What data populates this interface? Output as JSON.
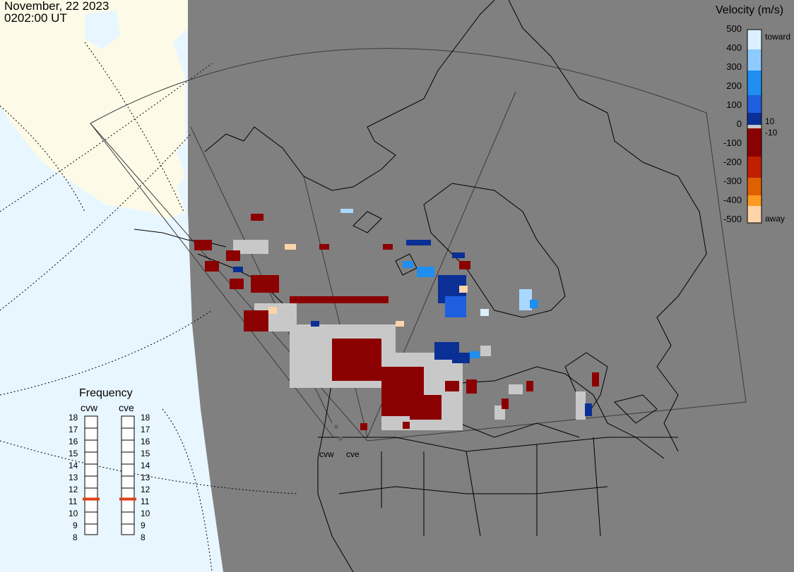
{
  "header": {
    "date": "November, 22 2023",
    "time": "0202:00 UT"
  },
  "colorbar": {
    "title": "Velocity (m/s)",
    "ticks": [
      "500",
      "400",
      "300",
      "200",
      "100",
      "0",
      "-100",
      "-200",
      "-300",
      "-400",
      "-500"
    ],
    "labels": {
      "toward": "toward",
      "away": "away",
      "pos_small": "10",
      "neg_small": "-10"
    },
    "colors": {
      "toward_far": "#dcefff",
      "toward_mid": "#1e8fef",
      "toward_near": "#0a2f95",
      "ground": "#c8c8c8",
      "away_near": "#8b0000",
      "away_mid": "#e06000",
      "away_far": "#ffd4a8"
    }
  },
  "frequency": {
    "title": "Frequency",
    "radars": [
      {
        "name": "cvw",
        "value_mhz": 10.8
      },
      {
        "name": "cve",
        "value_mhz": 10.8
      }
    ],
    "scale": [
      "18",
      "17",
      "16",
      "15",
      "14",
      "13",
      "12",
      "11",
      "10",
      "9",
      "8"
    ],
    "marker_color": "#e0401a"
  },
  "map": {
    "radar_labels": [
      "cvw",
      "cve"
    ],
    "land_color": "#808080",
    "ocean_color": "#e8f6ff",
    "outside_color": "#fdfbe8"
  }
}
